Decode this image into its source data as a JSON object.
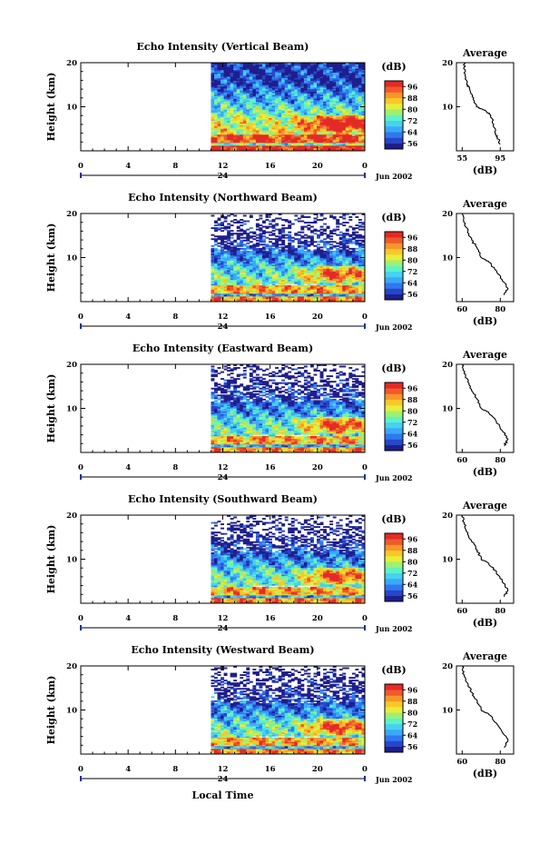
{
  "chart_data": {
    "type": "heatmap",
    "figure_xlabel": "Local Time",
    "date_label": "Jun 2002",
    "day_label": "24",
    "x_ticks": [
      "0",
      "4",
      "8",
      "12",
      "16",
      "20",
      "0"
    ],
    "y_ticks": [
      "10",
      "20"
    ],
    "ylabel": "Height (km)",
    "colorbar": {
      "label": "(dB)",
      "ticks": [
        "56",
        "64",
        "72",
        "80",
        "88",
        "96"
      ]
    },
    "colors": [
      "#1e1e8c",
      "#2846c8",
      "#2f78f0",
      "#3ca8f8",
      "#46d2f0",
      "#5ef2c8",
      "#a0f070",
      "#e6ee3c",
      "#f8c828",
      "#f8962a",
      "#f05a2a",
      "#e42a28"
    ],
    "data_start_hour": 11,
    "panels": [
      {
        "title": "Echo Intensity (Vertical Beam)",
        "avg_title": "Average",
        "avg_xlabel": "(dB)",
        "avg_xticks": [
          "55",
          "95"
        ],
        "avg_yticks": [
          "10",
          "20"
        ],
        "base": 0.0,
        "avg_profile": [
          [
            95,
            1.5
          ],
          [
            92,
            3
          ],
          [
            90,
            4
          ],
          [
            88,
            6
          ],
          [
            85,
            8
          ],
          [
            80,
            9
          ],
          [
            70,
            10
          ],
          [
            67,
            12
          ],
          [
            63,
            14
          ],
          [
            60,
            15
          ],
          [
            58,
            17
          ],
          [
            57,
            19
          ],
          [
            58,
            20
          ]
        ]
      },
      {
        "title": "Echo Intensity (Northward Beam)",
        "avg_title": "Average",
        "avg_xlabel": "(dB)",
        "avg_xticks": [
          "60",
          "80"
        ],
        "avg_yticks": [
          "10",
          "20"
        ],
        "base": -2.0,
        "avg_profile": [
          [
            82,
            1.5
          ],
          [
            84,
            3
          ],
          [
            81,
            5
          ],
          [
            78,
            7
          ],
          [
            74,
            9
          ],
          [
            70,
            10
          ],
          [
            68,
            12
          ],
          [
            65,
            14
          ],
          [
            63,
            16
          ],
          [
            61,
            18
          ],
          [
            60,
            20
          ]
        ]
      },
      {
        "title": "Echo Intensity (Eastward Beam)",
        "avg_title": "Average",
        "avg_xlabel": "(dB)",
        "avg_xticks": [
          "60",
          "80"
        ],
        "avg_yticks": [
          "10",
          "20"
        ],
        "base": -2.0,
        "avg_profile": [
          [
            82,
            1.5
          ],
          [
            84,
            3
          ],
          [
            81,
            5
          ],
          [
            78,
            7
          ],
          [
            74,
            9
          ],
          [
            70,
            10
          ],
          [
            68,
            12
          ],
          [
            65,
            14
          ],
          [
            63,
            16
          ],
          [
            61,
            18
          ],
          [
            60,
            20
          ]
        ]
      },
      {
        "title": "Echo Intensity (Southward Beam)",
        "avg_title": "Average",
        "avg_xlabel": "(dB)",
        "avg_xticks": [
          "60",
          "80"
        ],
        "avg_yticks": [
          "10",
          "20"
        ],
        "base": -2.0,
        "avg_profile": [
          [
            82,
            1.5
          ],
          [
            84,
            3
          ],
          [
            81,
            5
          ],
          [
            78,
            7
          ],
          [
            74,
            9
          ],
          [
            70,
            10
          ],
          [
            68,
            12
          ],
          [
            65,
            14
          ],
          [
            63,
            16
          ],
          [
            61,
            18
          ],
          [
            60,
            20
          ]
        ]
      },
      {
        "title": "Echo Intensity (Westward Beam)",
        "avg_title": "Average",
        "avg_xlabel": "(dB)",
        "avg_xticks": [
          "60",
          "80"
        ],
        "avg_yticks": [
          "10",
          "20"
        ],
        "base": -2.0,
        "avg_profile": [
          [
            82,
            1.5
          ],
          [
            84,
            3
          ],
          [
            81,
            5
          ],
          [
            78,
            7
          ],
          [
            74,
            9
          ],
          [
            70,
            10
          ],
          [
            68,
            12
          ],
          [
            65,
            14
          ],
          [
            63,
            16
          ],
          [
            61,
            18
          ],
          [
            60,
            20
          ]
        ]
      }
    ]
  }
}
